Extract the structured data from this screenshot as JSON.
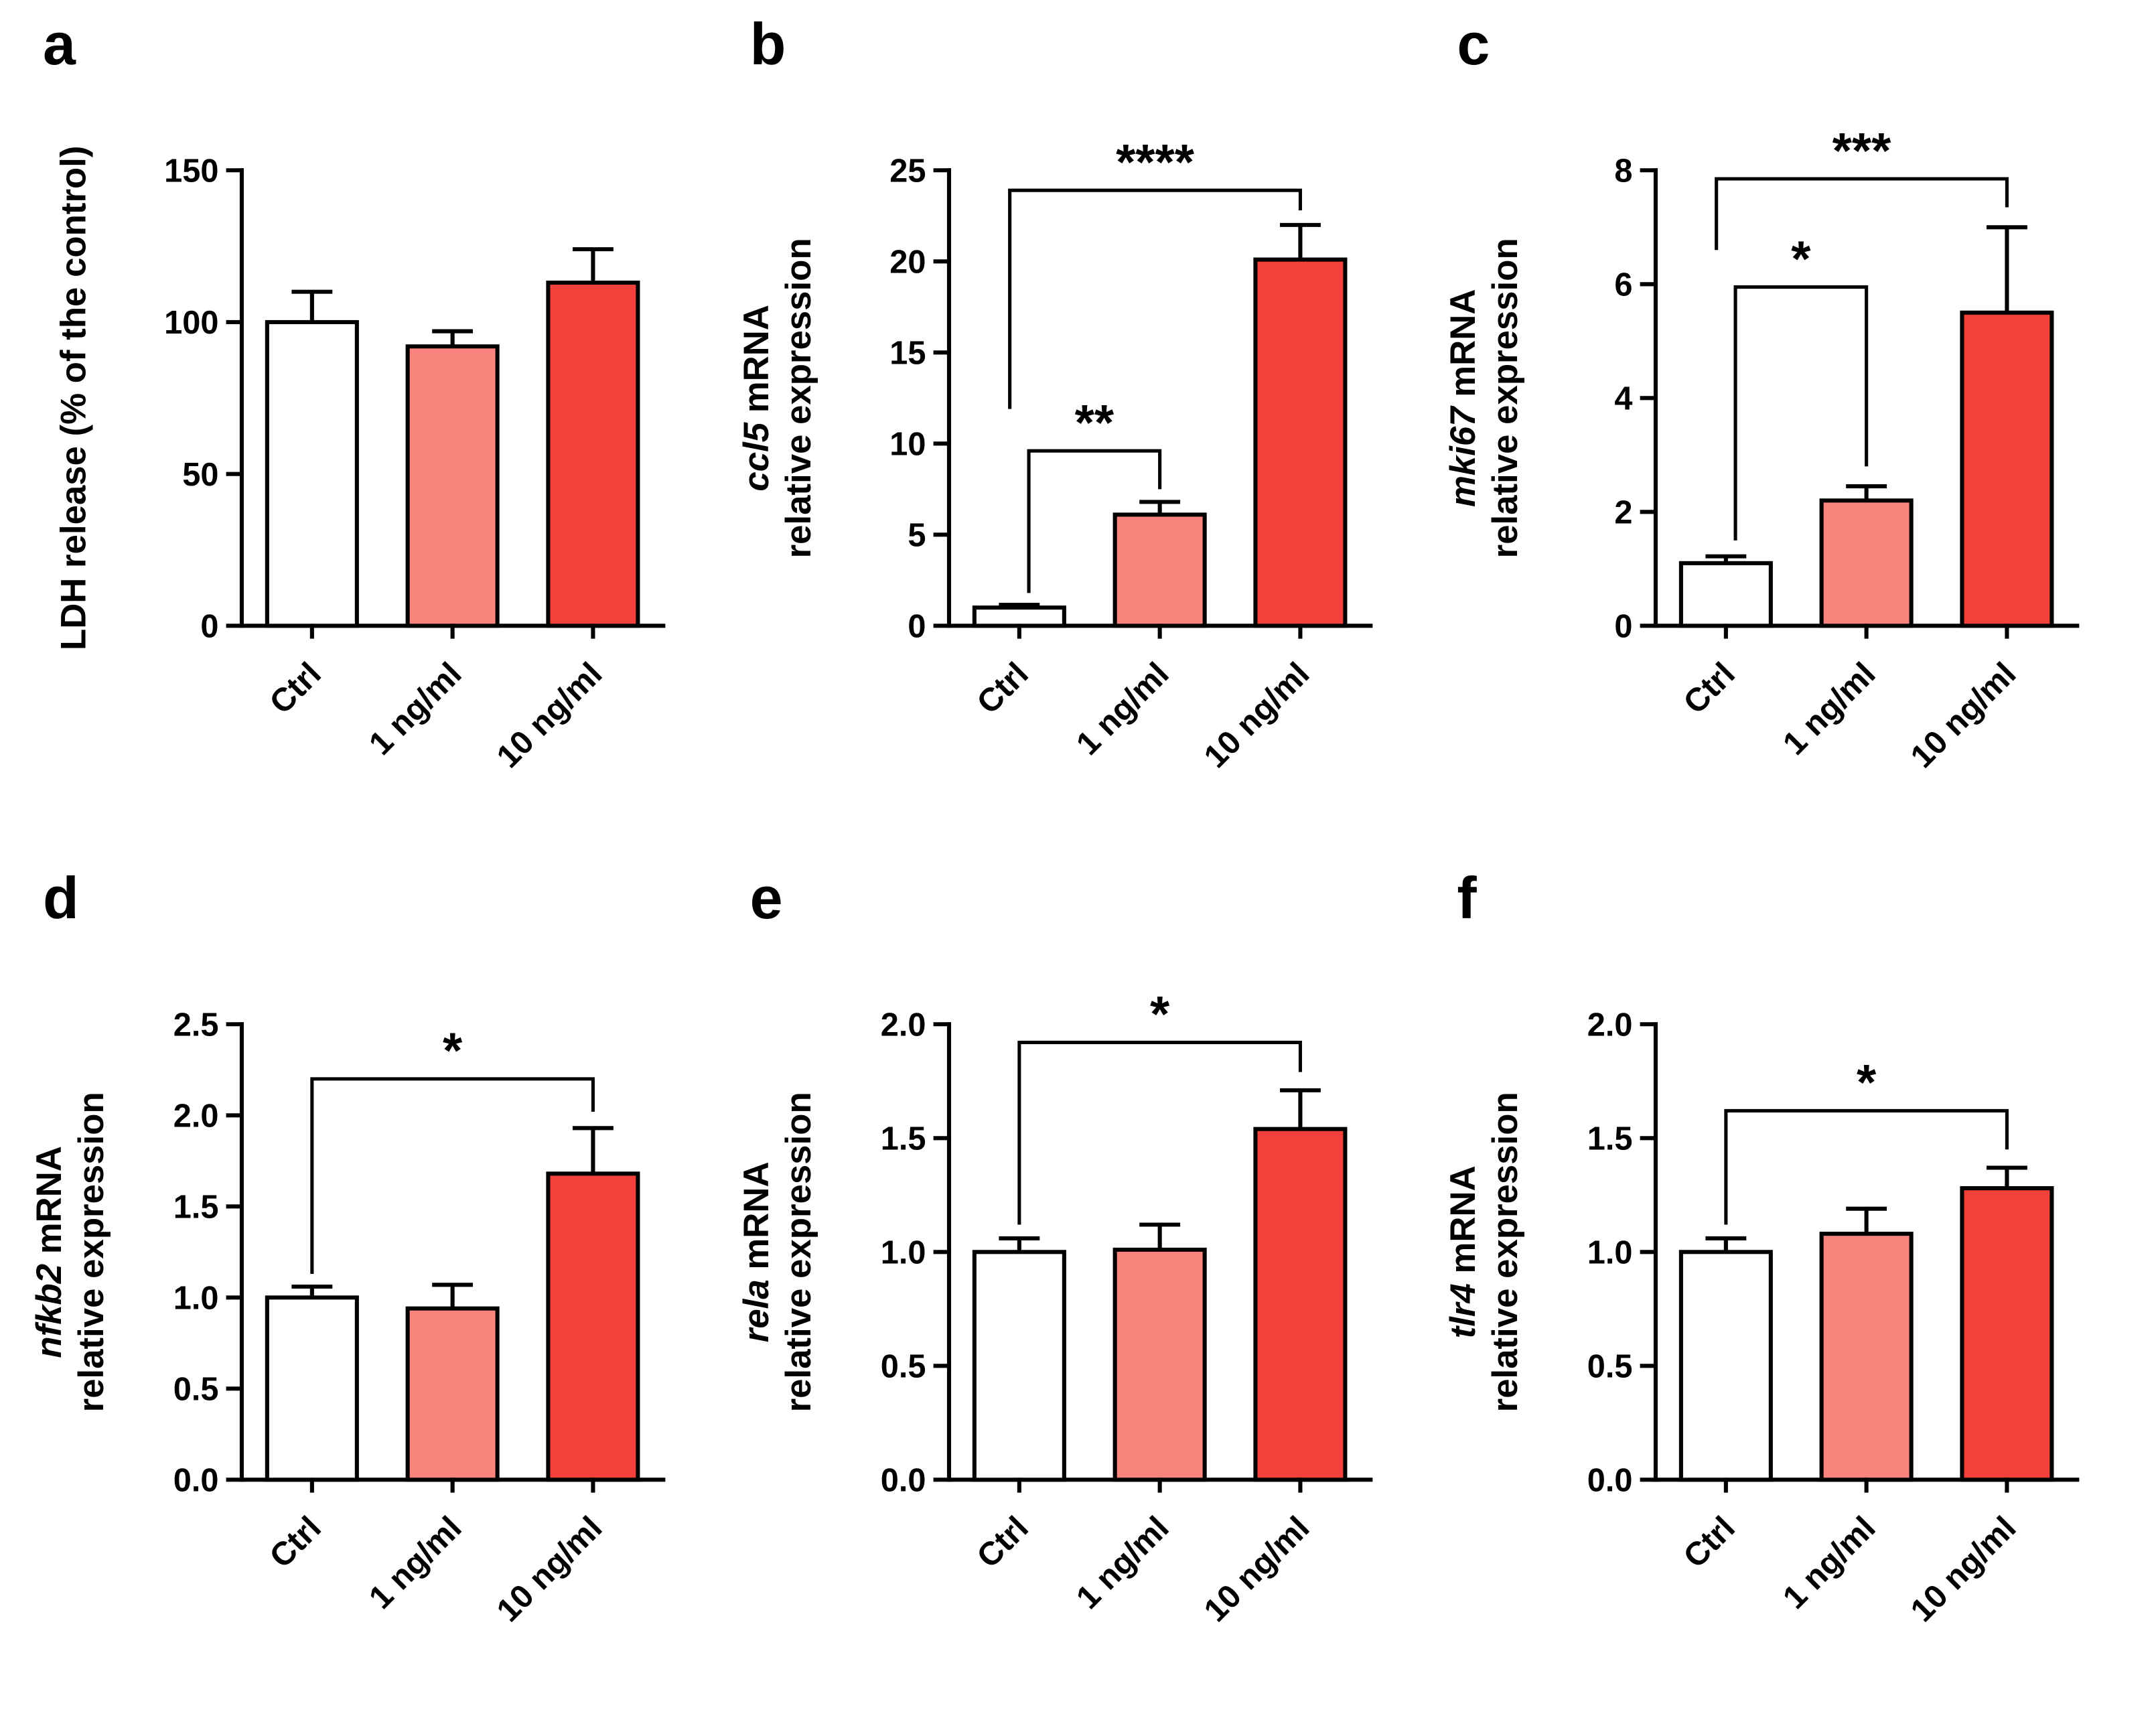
{
  "figure": {
    "background": "#FFFFFF",
    "bar_fill_colors": [
      "#FFFFFF",
      "#F9847D",
      "#F2413A"
    ],
    "bar_stroke_color": "#000000",
    "axis_color": "#000000"
  },
  "chart_data": [
    {
      "panel_label": "a",
      "type": "bar",
      "ylabel": {
        "gene": "",
        "rest": "LDH release (% of the control)",
        "line2": ""
      },
      "categories": [
        "Ctrl",
        "1 ng/ml",
        "10 ng/ml"
      ],
      "values": [
        100,
        92,
        113
      ],
      "errors": [
        10,
        5,
        11
      ],
      "ylim": [
        0,
        150
      ],
      "yticks": [
        0,
        50,
        100,
        150
      ],
      "ytick_labels": [
        "0",
        "50",
        "100",
        "150"
      ],
      "significance": []
    },
    {
      "panel_label": "b",
      "type": "bar",
      "ylabel": {
        "gene": "ccl5",
        "rest": " mRNA",
        "line2": "relative expression"
      },
      "categories": [
        "Ctrl",
        "1 ng/ml",
        "10 ng/ml"
      ],
      "values": [
        1,
        6.1,
        20.1
      ],
      "errors": [
        0.15,
        0.7,
        1.9
      ],
      "ylim": [
        0,
        25
      ],
      "yticks": [
        0,
        5,
        10,
        15,
        20,
        25
      ],
      "ytick_labels": [
        "0",
        "5",
        "10",
        "15",
        "20",
        "25"
      ],
      "significance": [
        {
          "x1": 0,
          "x2": 1,
          "label": "**",
          "y": 9.6,
          "y1_end": 1.8,
          "y2_end": 7.5,
          "x1_off": 14,
          "x2_off": 0
        },
        {
          "x1": 0,
          "x2": 2,
          "label": "****",
          "y": 23.9,
          "y1_end": 11.9,
          "y2_end": 22.8,
          "x1_off": -14,
          "x2_off": 0
        }
      ]
    },
    {
      "panel_label": "c",
      "type": "bar",
      "ylabel": {
        "gene": "mki67",
        "rest": " mRNA",
        "line2": "relative expression"
      },
      "categories": [
        "Ctrl",
        "1 ng/ml",
        "10 ng/ml"
      ],
      "values": [
        1.1,
        2.2,
        5.5
      ],
      "errors": [
        0.12,
        0.25,
        1.5
      ],
      "ylim": [
        0,
        8
      ],
      "yticks": [
        0,
        2,
        4,
        6,
        8
      ],
      "ytick_labels": [
        "0",
        "2",
        "4",
        "6",
        "8"
      ],
      "significance": [
        {
          "x1": 0,
          "x2": 1,
          "label": "*",
          "y": 5.95,
          "y1_end": 1.5,
          "y2_end": 2.8,
          "x1_off": 14,
          "x2_off": 0
        },
        {
          "x1": 0,
          "x2": 2,
          "label": "***",
          "y": 7.85,
          "y1_end": 6.6,
          "y2_end": 7.35,
          "x1_off": -14,
          "x2_off": 0
        }
      ]
    },
    {
      "panel_label": "d",
      "type": "bar",
      "ylabel": {
        "gene": "nfkb2",
        "rest": " mRNA",
        "line2": "relative expression"
      },
      "categories": [
        "Ctrl",
        "1 ng/ml",
        "10 ng/ml"
      ],
      "values": [
        1.0,
        0.94,
        1.68
      ],
      "errors": [
        0.06,
        0.13,
        0.25
      ],
      "ylim": [
        0,
        2.5
      ],
      "yticks": [
        0,
        0.5,
        1,
        1.5,
        2,
        2.5
      ],
      "ytick_labels": [
        "0.0",
        "0.5",
        "1.0",
        "1.5",
        "2.0",
        "2.5"
      ],
      "significance": [
        {
          "x1": 0,
          "x2": 2,
          "label": "*",
          "y": 2.2,
          "y1_end": 1.13,
          "y2_end": 2.02,
          "x1_off": 0,
          "x2_off": 0
        }
      ]
    },
    {
      "panel_label": "e",
      "type": "bar",
      "ylabel": {
        "gene": "rela",
        "rest": " mRNA",
        "line2": "relative expression"
      },
      "categories": [
        "Ctrl",
        "1 ng/ml",
        "10 ng/ml"
      ],
      "values": [
        1.0,
        1.01,
        1.54
      ],
      "errors": [
        0.06,
        0.11,
        0.17
      ],
      "ylim": [
        0,
        2
      ],
      "yticks": [
        0,
        0.5,
        1,
        1.5,
        2
      ],
      "ytick_labels": [
        "0.0",
        "0.5",
        "1.0",
        "1.5",
        "2.0"
      ],
      "significance": [
        {
          "x1": 0,
          "x2": 2,
          "label": "*",
          "y": 1.92,
          "y1_end": 1.12,
          "y2_end": 1.79,
          "x1_off": 0,
          "x2_off": 0
        }
      ]
    },
    {
      "panel_label": "f",
      "type": "bar",
      "ylabel": {
        "gene": "tlr4",
        "rest": " mRNA",
        "line2": "relative expression"
      },
      "categories": [
        "Ctrl",
        "1 ng/ml",
        "10 ng/ml"
      ],
      "values": [
        1.0,
        1.08,
        1.28
      ],
      "errors": [
        0.06,
        0.11,
        0.09
      ],
      "ylim": [
        0,
        2
      ],
      "yticks": [
        0,
        0.5,
        1,
        1.5,
        2
      ],
      "ytick_labels": [
        "0.0",
        "0.5",
        "1.0",
        "1.5",
        "2.0"
      ],
      "significance": [
        {
          "x1": 0,
          "x2": 2,
          "label": "*",
          "y": 1.62,
          "y1_end": 1.12,
          "y2_end": 1.45,
          "x1_off": 0,
          "x2_off": 0
        }
      ]
    }
  ]
}
